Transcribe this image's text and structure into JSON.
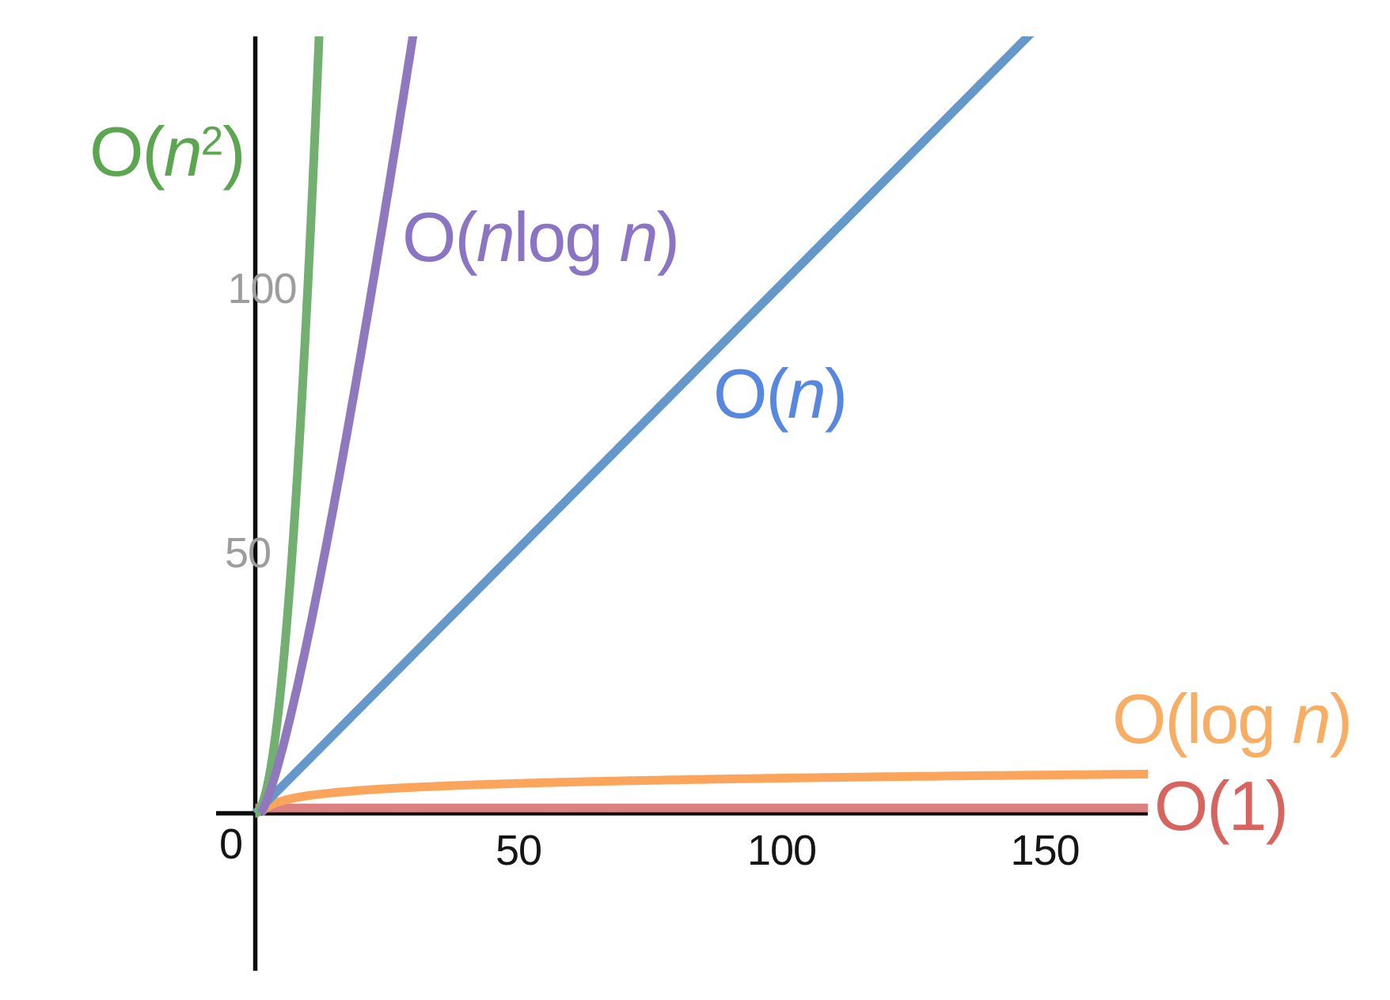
{
  "chart_data": {
    "type": "line",
    "title": "",
    "xlabel": "",
    "ylabel": "",
    "x_axis": {
      "ticks": [
        0,
        50,
        100,
        150
      ],
      "range": [
        -7.5,
        169.5
      ],
      "tick_color": "#151515"
    },
    "y_axis": {
      "ticks": [
        50,
        100
      ],
      "range": [
        -30,
        147
      ],
      "tick_color": "#9D9D9D"
    },
    "grid": false,
    "legend": "inline-labels-next-to-curves",
    "styles": {
      "background": "#FFFFFF",
      "axis_color": "#0C0C0C"
    },
    "series": [
      {
        "id": "o1",
        "name": "O(1)",
        "fn": "constant",
        "domain": [
          0,
          169.6
        ],
        "color": "#DB8181",
        "label_color": "#D8645F",
        "label_runs": [
          {
            "t": "O(1)"
          }
        ],
        "sample_points": [
          [
            0,
            1
          ],
          [
            50,
            1
          ],
          [
            100,
            1
          ],
          [
            150,
            1
          ],
          [
            169,
            1
          ]
        ]
      },
      {
        "id": "olog",
        "name": "O(log n)",
        "fn": "log2",
        "domain": [
          1,
          169.6
        ],
        "color": "#FBA45B",
        "label_color": "#F7AE64",
        "label_runs": [
          {
            "t": "O(log "
          },
          {
            "t": "n",
            "i": true
          },
          {
            "t": ")"
          }
        ],
        "sample_points": [
          [
            1,
            0
          ],
          [
            2,
            1
          ],
          [
            4,
            2
          ],
          [
            8,
            3
          ],
          [
            16,
            4
          ],
          [
            32,
            5
          ],
          [
            64,
            6
          ],
          [
            128,
            7
          ],
          [
            169,
            7.4
          ]
        ]
      },
      {
        "id": "on",
        "name": "O(n)",
        "fn": "linear",
        "domain": [
          0,
          148
        ],
        "color": "#6598CA",
        "label_color": "#5787DF",
        "label_runs": [
          {
            "t": "O("
          },
          {
            "t": "n",
            "i": true
          },
          {
            "t": ")"
          }
        ],
        "sample_points": [
          [
            0,
            0
          ],
          [
            50,
            50
          ],
          [
            100,
            100
          ],
          [
            147,
            147
          ]
        ]
      },
      {
        "id": "on2",
        "name": "O(n^2)",
        "fn": "square",
        "domain": [
          0,
          12.3
        ],
        "color": "#73AF71",
        "label_color": "#5CA551",
        "label_runs": [
          {
            "t": "O("
          },
          {
            "t": "n",
            "i": true
          },
          {
            "t": "2",
            "sup": true
          },
          {
            "t": ")"
          }
        ],
        "sample_points": [
          [
            0,
            0
          ],
          [
            3,
            9
          ],
          [
            6,
            36
          ],
          [
            9,
            81
          ],
          [
            12.1,
            146.8
          ]
        ]
      },
      {
        "id": "onlog",
        "name": "O(n log n)",
        "fn": "nlog2n",
        "domain": [
          1,
          30.2
        ],
        "color": "#9078BE",
        "label_color": "#8B74C3",
        "label_runs": [
          {
            "t": "O("
          },
          {
            "t": "n",
            "i": true
          },
          {
            "t": "log "
          },
          {
            "t": "n",
            "i": true
          },
          {
            "t": ")"
          }
        ],
        "sample_points": [
          [
            1,
            0
          ],
          [
            5,
            11.6
          ],
          [
            10,
            33.2
          ],
          [
            20,
            86.4
          ],
          [
            30,
            147.2
          ]
        ]
      }
    ]
  }
}
